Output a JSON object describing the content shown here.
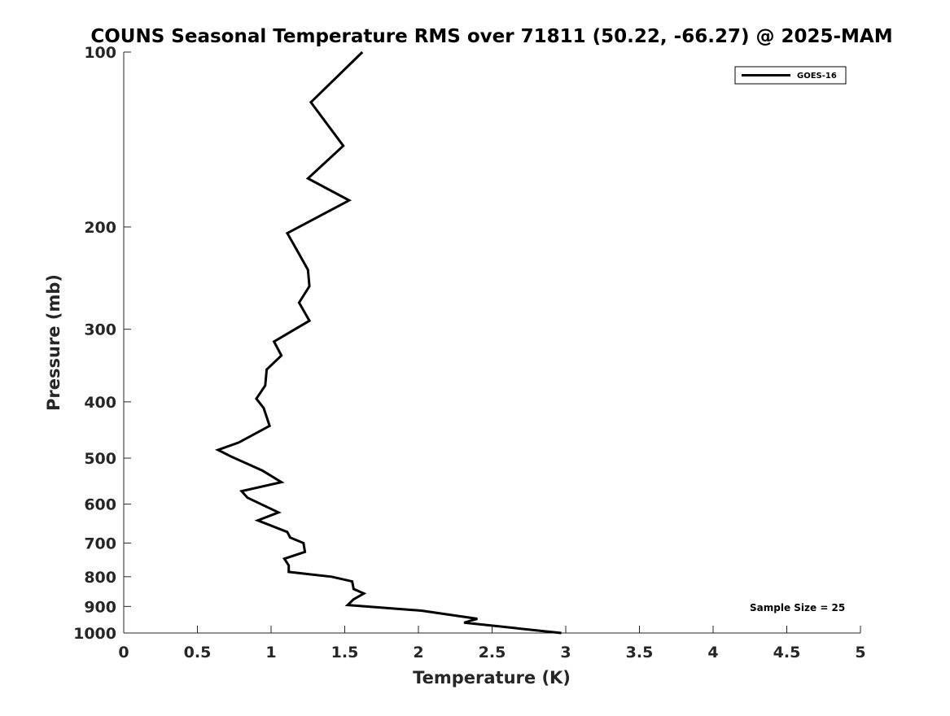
{
  "chart_data": {
    "type": "line",
    "title": "COUNS Seasonal Temperature RMS over 71811 (50.22, -66.27) @ 2025-MAM",
    "xlabel": "Temperature (K)",
    "ylabel": "Pressure (mb)",
    "xlim": [
      0,
      5
    ],
    "ylim": [
      100,
      1000
    ],
    "yscale": "log",
    "yreversed": true,
    "xticks": [
      "0",
      "0.5",
      "1",
      "1.5",
      "2",
      "2.5",
      "3",
      "3.5",
      "4",
      "4.5",
      "5"
    ],
    "yticks": [
      "100",
      "200",
      "300",
      "400",
      "500",
      "600",
      "700",
      "800",
      "900",
      "1000"
    ],
    "grid": false,
    "legend_position": "top-right",
    "annotation": "Sample Size = 25",
    "series": [
      {
        "name": "GOES-16",
        "color": "#000000",
        "x": [
          1.62,
          1.27,
          1.49,
          1.25,
          1.53,
          1.11,
          1.17,
          1.25,
          1.26,
          1.19,
          1.26,
          1.02,
          1.07,
          0.97,
          0.96,
          0.9,
          0.95,
          0.99,
          0.78,
          0.64,
          0.73,
          0.94,
          1.07,
          0.8,
          0.84,
          1.05,
          0.91,
          1.11,
          1.13,
          1.22,
          1.23,
          1.09,
          1.12,
          1.12,
          1.41,
          1.55,
          1.56,
          1.63,
          1.56,
          1.52,
          2.02,
          2.4,
          2.31,
          2.97
        ],
        "y": [
          100,
          122,
          145,
          165,
          180,
          205,
          218,
          237,
          253,
          270,
          290,
          315,
          333,
          352,
          375,
          395,
          410,
          440,
          470,
          484,
          497,
          525,
          550,
          570,
          585,
          620,
          640,
          670,
          685,
          700,
          725,
          745,
          765,
          785,
          800,
          815,
          840,
          855,
          875,
          895,
          915,
          945,
          960,
          1000
        ]
      }
    ]
  }
}
